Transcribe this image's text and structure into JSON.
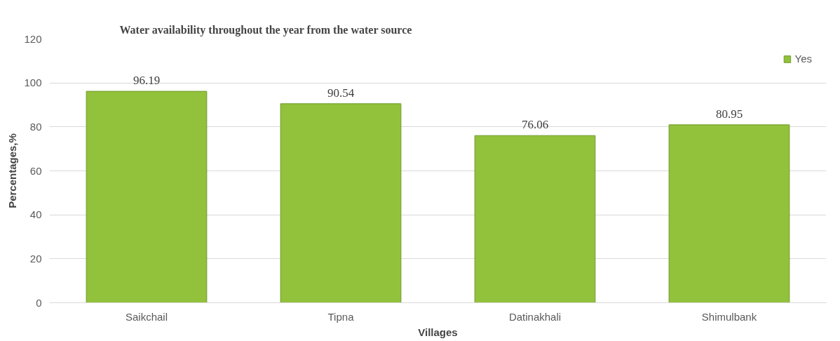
{
  "chart_data": {
    "type": "bar",
    "title": "Water availability throughout the year from the water source",
    "xlabel": "Villages",
    "ylabel": "Percentages,%",
    "categories": [
      "Saikchail",
      "Tipna",
      "Datinakhali",
      "Shimulbank"
    ],
    "series": [
      {
        "name": "Yes",
        "color": "#92c13b",
        "values": [
          96.19,
          90.54,
          76.06,
          80.95
        ]
      }
    ],
    "ylim": [
      0,
      120
    ],
    "yticks": [
      0,
      20,
      40,
      60,
      80,
      100,
      120
    ],
    "grid": "y",
    "legend": "top right",
    "data_labels": true
  }
}
